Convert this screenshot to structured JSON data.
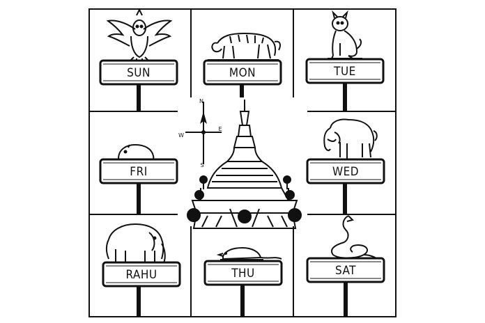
{
  "cells": {
    "sun": {
      "label": "SUN",
      "animal_icon": "garuda-icon"
    },
    "mon": {
      "label": "MON",
      "animal_icon": "tiger-icon"
    },
    "tue": {
      "label": "TUE",
      "animal_icon": "lion-icon"
    },
    "fri": {
      "label": "FRI",
      "animal_icon": "guinea-pig-icon"
    },
    "wed": {
      "label": "WED",
      "animal_icon": "tusked-elephant-icon"
    },
    "rahu": {
      "label": "RAHU",
      "animal_icon": "tuskless-elephant-icon"
    },
    "thu": {
      "label": "THU",
      "animal_icon": "rat-icon"
    },
    "sat": {
      "label": "SAT",
      "animal_icon": "naga-icon"
    }
  },
  "compass": {
    "n": "N",
    "e": "E",
    "w": "W",
    "s": "S"
  },
  "center_icon": "pagoda-icon",
  "ink_color": "#111111",
  "background_color": "#ffffff"
}
